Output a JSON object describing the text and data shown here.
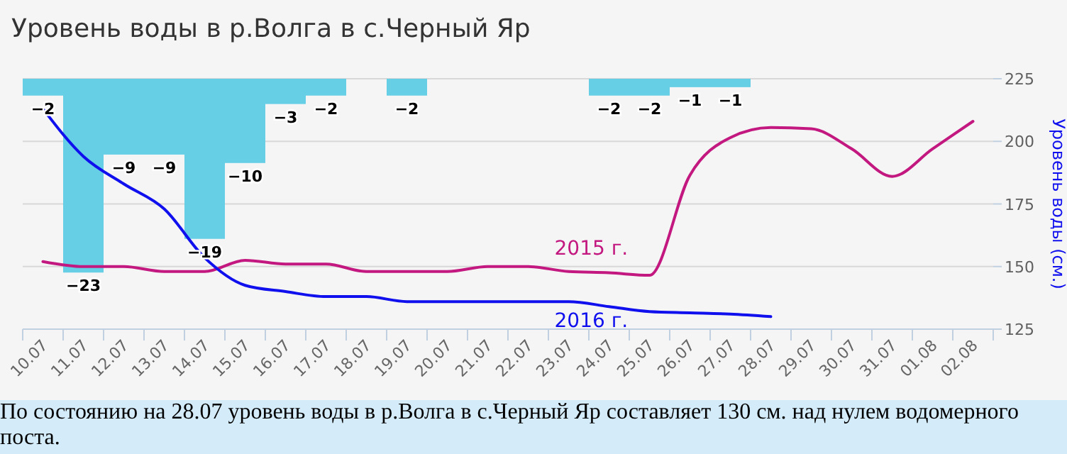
{
  "chart_data": {
    "type": "bar",
    "title": "Уровень воды в р.Волга в с.Черный Яр",
    "categories": [
      "10.07",
      "11.07",
      "12.07",
      "13.07",
      "14.07",
      "15.07",
      "16.07",
      "17.07",
      "18.07",
      "19.07",
      "20.07",
      "21.07",
      "22.07",
      "23.07",
      "24.07",
      "25.07",
      "26.07",
      "27.07",
      "28.07",
      "29.07",
      "30.07",
      "31.07",
      "01.08",
      "02.08"
    ],
    "series": [
      {
        "color": "#66cfe6",
        "values": [
          -2,
          -23,
          -9,
          -9,
          -19,
          -10,
          -3,
          -2,
          null,
          -2,
          null,
          null,
          null,
          null,
          -2,
          -2,
          -1,
          -1,
          null,
          null,
          null,
          null,
          null,
          null
        ],
        "value_labels": [
          "−2",
          "−23",
          "−9",
          "−9",
          "−19",
          "−10",
          "−3",
          "−2",
          null,
          "−2",
          null,
          null,
          null,
          null,
          "−2",
          "−2",
          "−1",
          "−1",
          null,
          null,
          null,
          null,
          null,
          null
        ]
      },
      {
        "type": "line",
        "name": "2015 г.",
        "axis": "y2",
        "color": "#c2187f",
        "values": [
          152,
          150,
          150,
          148,
          148,
          152.5,
          151,
          151,
          148,
          148,
          148,
          150,
          150,
          148,
          147.5,
          146.5,
          186.5,
          201.5,
          205.5,
          205,
          197,
          186,
          197,
          208
        ]
      },
      {
        "type": "line",
        "name": "2016 г.",
        "axis": "y2",
        "color": "#1010ee",
        "values": [
          213,
          194,
          183,
          173,
          153.5,
          142.5,
          140,
          138,
          138,
          136,
          136,
          136,
          136,
          136,
          134,
          132,
          131.5,
          131,
          130,
          null,
          null,
          null,
          null,
          null
        ]
      }
    ],
    "y2label": "Уровень воды (см.)",
    "y2lim": [
      125,
      225
    ],
    "y2ticks": [
      125,
      150,
      175,
      200,
      225
    ],
    "grid": "y",
    "marker": "none",
    "line_style": "solid",
    "annotations": [
      "По состоянию на 28.07 уровень воды в р.Волга в с.Черный Яр составляет 130 см. над нулем водомерного поста."
    ]
  }
}
